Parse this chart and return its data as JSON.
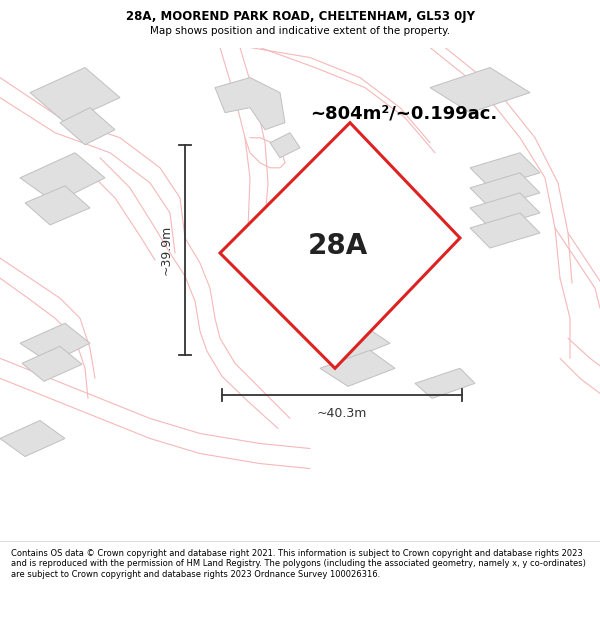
{
  "title_line1": "28A, MOOREND PARK ROAD, CHELTENHAM, GL53 0JY",
  "title_line2": "Map shows position and indicative extent of the property.",
  "area_label": "~804m²/~0.199ac.",
  "plot_label": "28A",
  "dim_width": "~40.3m",
  "dim_height": "~39.9m",
  "footer_text": "Contains OS data © Crown copyright and database right 2021. This information is subject to Crown copyright and database rights 2023 and is reproduced with the permission of HM Land Registry. The polygons (including the associated geometry, namely x, y co-ordinates) are subject to Crown copyright and database rights 2023 Ordnance Survey 100026316.",
  "map_bg": "#f7f7f7",
  "red_color": "#dd2222",
  "road_color": "#f5b8b8",
  "building_fill": "#e0e0e0",
  "building_edge": "#c0c0c0",
  "dim_color": "#333333"
}
